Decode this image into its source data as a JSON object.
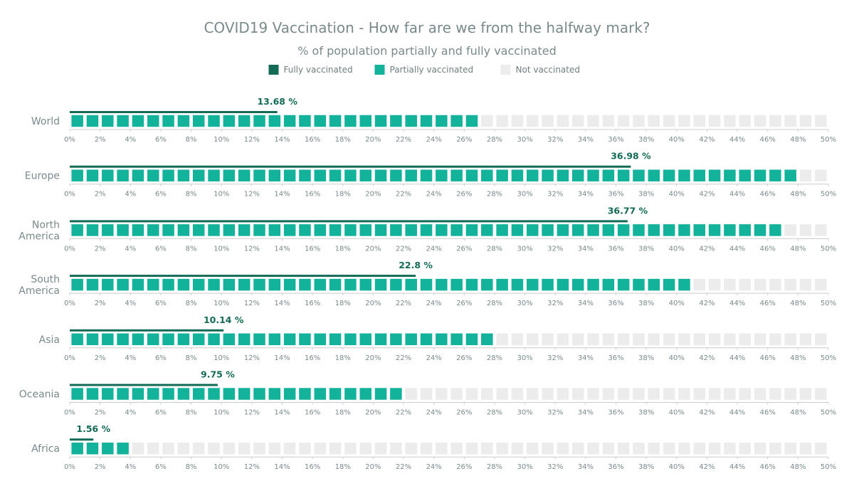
{
  "chart_data": {
    "type": "bar",
    "title": "COVID19 Vaccination - How far are we from the halfway mark?",
    "subtitle": "% of population partially and fully vaccinated",
    "legend": {
      "placement": "top-center",
      "items": [
        {
          "name": "Fully vaccinated",
          "color": "#136b56"
        },
        {
          "name": "Partially vaccinated",
          "color": "#12b39a"
        },
        {
          "name": "Not vaccinated",
          "color": "#ececec"
        }
      ]
    },
    "xlim": [
      0,
      50
    ],
    "tick_labels": [
      "0%",
      "2%",
      "4%",
      "6%",
      "8%",
      "10%",
      "12%",
      "14%",
      "16%",
      "18%",
      "20%",
      "22%",
      "24%",
      "26%",
      "28%",
      "30%",
      "32%",
      "34%",
      "36%",
      "38%",
      "40%",
      "42%",
      "44%",
      "46%",
      "48%",
      "50%"
    ],
    "categories": [
      {
        "label": [
          "World"
        ],
        "partially": 27,
        "fully": 13.68,
        "fully_label": "13.68 %"
      },
      {
        "label": [
          "Europe"
        ],
        "partially": 48,
        "fully": 36.98,
        "fully_label": "36.98 %"
      },
      {
        "label": [
          "North",
          "America"
        ],
        "partially": 47,
        "fully": 36.77,
        "fully_label": "36.77 %"
      },
      {
        "label": [
          "South",
          "America"
        ],
        "partially": 41,
        "fully": 22.8,
        "fully_label": "22.8 %"
      },
      {
        "label": [
          "Asia"
        ],
        "partially": 28,
        "fully": 10.14,
        "fully_label": "10.14 %"
      },
      {
        "label": [
          "Oceania"
        ],
        "partially": 22,
        "fully": 9.75,
        "fully_label": "9.75 %"
      },
      {
        "label": [
          "Africa"
        ],
        "partially": 4,
        "fully": 1.56,
        "fully_label": "1.56 %"
      }
    ],
    "colors": {
      "fully": "#136b56",
      "partially": "#12b39a",
      "not": "#ececec",
      "axis": "#cccccc",
      "text": "#7a8a8c"
    }
  }
}
